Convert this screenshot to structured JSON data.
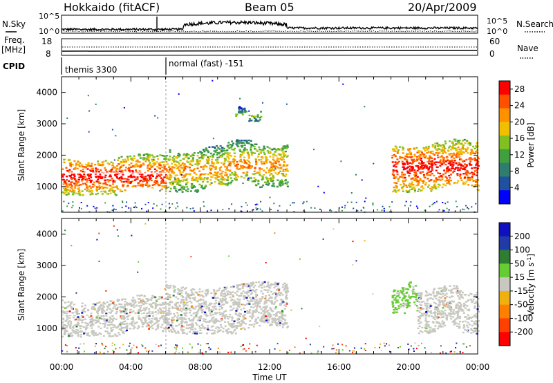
{
  "header": {
    "station": "Hokkaido (fitACF)",
    "beam": "Beam 05",
    "date": "20/Apr/2009"
  },
  "left_labels": {
    "nsky": "N.Sky",
    "freq": "Freq.",
    "freq_unit": "[MHz]",
    "cpid": "CPID"
  },
  "right_labels": {
    "nsearch": "N.Search",
    "nave": "Nave"
  },
  "sky_panel": {
    "ticks_left": [
      "10^5",
      "10^0"
    ],
    "ticks_right": [
      "10^5",
      "10^0"
    ]
  },
  "freq_panel": {
    "ticks_left": [
      "18",
      "8"
    ],
    "ticks_right": [
      "60",
      "0"
    ]
  },
  "cpid_panel": {
    "modes": [
      {
        "label": "themis 3300",
        "start_hour": 0.0,
        "end_hour": 5.95
      },
      {
        "label": "normal (fast) -151",
        "start_hour": 5.95,
        "end_hour": 24.0
      }
    ]
  },
  "colors": {
    "power_scale": [
      "#0000ff",
      "#2050a0",
      "#2e7d6e",
      "#40a040",
      "#80c020",
      "#f0c000",
      "#ff9000",
      "#ff5000",
      "#ff0000"
    ],
    "velocity_scale": [
      "#1010c0",
      "#203aa8",
      "#2e7d32",
      "#66cc33",
      "#c8c8c0",
      "#f0b010",
      "#ff8000",
      "#ff4000",
      "#ff0000"
    ],
    "ground_scatter": "#c8c8c0",
    "gridline": "#000000"
  },
  "chart_data": [
    {
      "type": "heatmap",
      "title": "",
      "xlabel": "Time UT",
      "ylabel": "Slant Range [km]",
      "colorbar_label": "Power [dB]",
      "colorbar_ticks": [
        "28",
        "24",
        "20",
        "16",
        "12",
        "8",
        "4"
      ],
      "colorbar_range": [
        0,
        30
      ],
      "x_ticks": [
        "00:00",
        "04:00",
        "08:00",
        "12:00",
        "16:00",
        "20:00",
        "00:00"
      ],
      "y_ticks": [
        "1000",
        "2000",
        "3000",
        "4000"
      ],
      "xlim_hours": [
        0,
        24
      ],
      "ylim_km": [
        180,
        4500
      ],
      "regions": [
        {
          "t_start": 0.0,
          "t_end": 6.0,
          "r_low": 750,
          "r_high": 1950,
          "level": "high"
        },
        {
          "t_start": 6.0,
          "t_end": 9.5,
          "r_low": 850,
          "r_high": 2200,
          "level": "medium"
        },
        {
          "t_start": 9.5,
          "t_end": 13.0,
          "r_low": 1000,
          "r_high": 2400,
          "level": "medium"
        },
        {
          "t_start": 10.0,
          "t_end": 11.5,
          "r_low": 3100,
          "r_high": 3450,
          "level": "low"
        },
        {
          "t_start": 19.0,
          "t_end": 24.0,
          "r_low": 850,
          "r_high": 2400,
          "level": "high"
        }
      ]
    },
    {
      "type": "heatmap",
      "title": "",
      "xlabel": "Time UT",
      "ylabel": "Slant Range [km]",
      "colorbar_label": "Velocity [m s^-1]",
      "colorbar_ticks": [
        "200",
        "100",
        "50",
        "15",
        "-15",
        "-50",
        "-100",
        "-200"
      ],
      "colorbar_range": [
        -250,
        250
      ],
      "x_ticks": [
        "00:00",
        "04:00",
        "08:00",
        "12:00",
        "16:00",
        "20:00",
        "00:00"
      ],
      "y_ticks": [
        "1000",
        "2000",
        "3000",
        "4000"
      ],
      "xlim_hours": [
        0,
        24
      ],
      "ylim_km": [
        180,
        4500
      ],
      "regions": [
        {
          "t_start": 0.0,
          "t_end": 6.0,
          "r_low": 750,
          "r_high": 1950,
          "level": "ground"
        },
        {
          "t_start": 6.0,
          "t_end": 13.0,
          "r_low": 850,
          "r_high": 2400,
          "level": "ground"
        },
        {
          "t_start": 19.0,
          "t_end": 20.5,
          "r_low": 1500,
          "r_high": 2400,
          "level": "slow-positive"
        },
        {
          "t_start": 20.5,
          "t_end": 24.0,
          "r_low": 850,
          "r_high": 2300,
          "level": "ground"
        }
      ]
    }
  ]
}
